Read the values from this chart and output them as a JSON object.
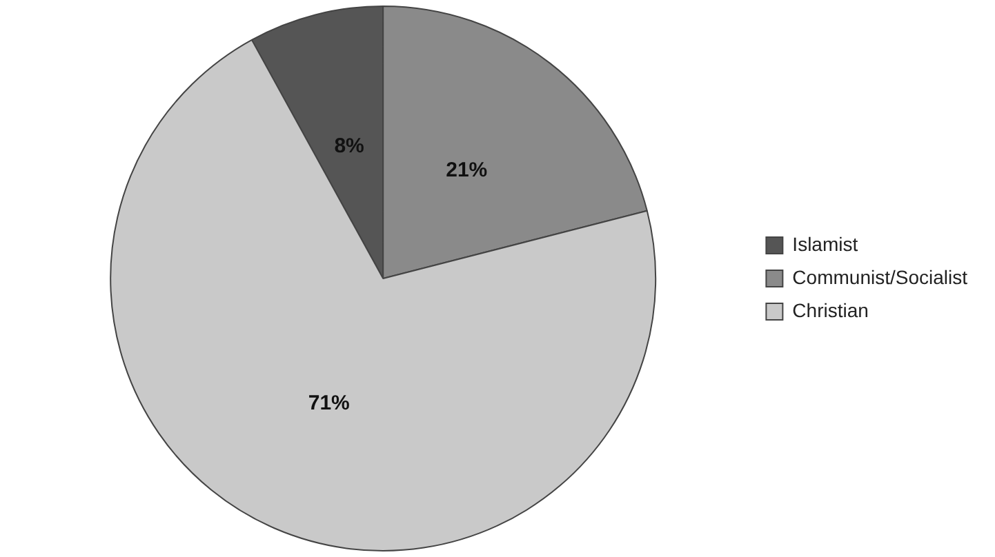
{
  "chart_data": {
    "type": "pie",
    "categories": [
      "Islamist",
      "Communist/Socialist",
      "Christian"
    ],
    "values": [
      8,
      21,
      71
    ],
    "colors": [
      "#555555",
      "#8a8a8a",
      "#c9c9c9"
    ],
    "value_labels": [
      "8%",
      "21%",
      "71%"
    ],
    "legend": "right"
  }
}
